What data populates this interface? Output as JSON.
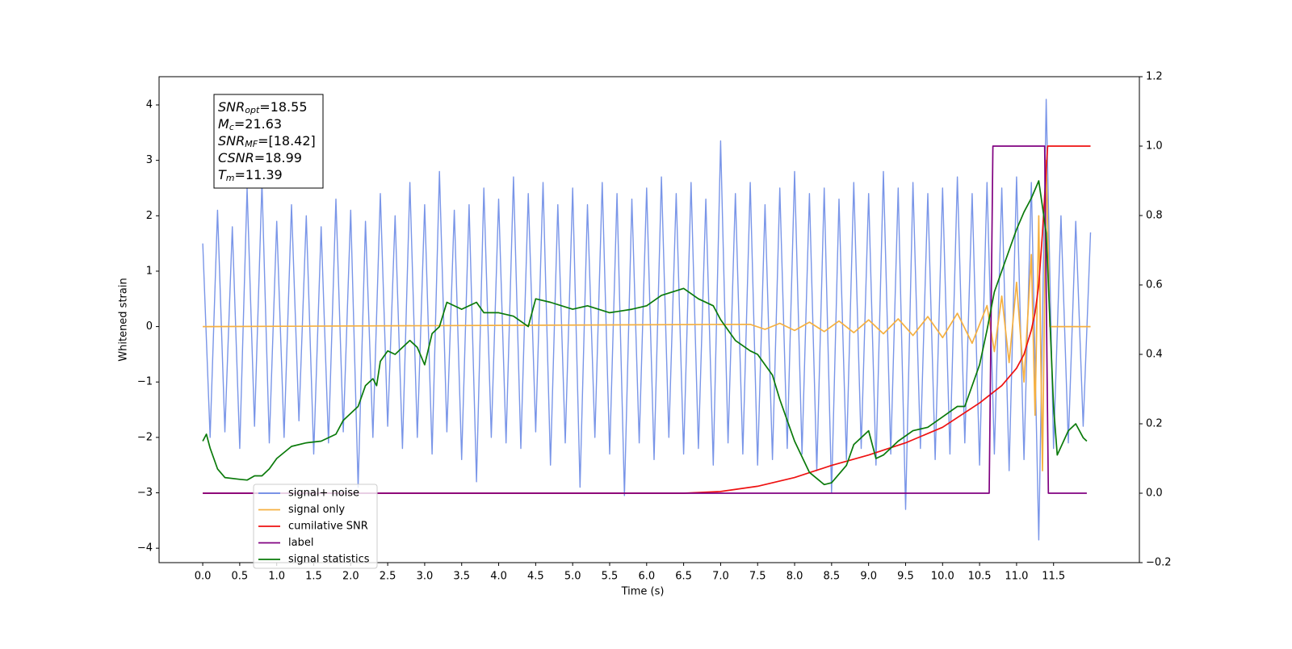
{
  "chart_data": {
    "type": "line",
    "xlabel": "Time (s)",
    "ylabel": "Whitened strain",
    "xlim": [
      -0.59,
      12.66
    ],
    "ylim": [
      -4.26,
      4.51
    ],
    "y2lim": [
      -0.2,
      1.2
    ],
    "xticks": [
      {
        "value": 0,
        "label": "0.0"
      },
      0.5,
      {
        "value": 1,
        "label": "1.0"
      },
      1.5,
      {
        "value": 2,
        "label": "2.0"
      },
      2.5,
      {
        "value": 3,
        "label": "3.0"
      },
      3.5,
      {
        "value": 4,
        "label": "4.0"
      },
      4.5,
      {
        "value": 5,
        "label": "5.0"
      },
      5.5,
      {
        "value": 6,
        "label": "6.0"
      },
      6.5,
      {
        "value": 7,
        "label": "7.0"
      },
      7.5,
      {
        "value": 8,
        "label": "8.0"
      },
      8.5,
      {
        "value": 9,
        "label": "9.0"
      },
      9.5,
      {
        "value": 10,
        "label": "10.0"
      },
      10.5,
      {
        "value": 11,
        "label": "11.0"
      },
      11.5
    ],
    "yticks": [
      {
        "value": -4,
        "label": "−4"
      },
      {
        "value": -3,
        "label": "−3"
      },
      {
        "value": -2,
        "label": "−2"
      },
      {
        "value": -1,
        "label": "−1"
      },
      0,
      1,
      2,
      3,
      4
    ],
    "y2ticks": [
      {
        "value": -0.2,
        "label": "−0.2"
      },
      {
        "value": 0,
        "label": "0.0"
      },
      0.2,
      0.4,
      0.6,
      0.8,
      {
        "value": 1,
        "label": "1.0"
      },
      1.2
    ],
    "annotation": [
      {
        "base": "SNR",
        "sub": "opt",
        "rest": "=18.55"
      },
      {
        "base": "M",
        "sub": "c",
        "rest": "=21.63"
      },
      {
        "base": "SNR",
        "sub": "MF",
        "rest": "=[18.42]"
      },
      {
        "base": "CSNR",
        "sub": null,
        "rest": "=18.99"
      },
      {
        "base": "T",
        "sub": "m",
        "rest": "=11.39"
      }
    ],
    "series": [
      {
        "name": "signal+ noise",
        "color": "#6a8ae6",
        "axis": "y",
        "x": [
          0,
          0.1,
          0.2,
          0.3,
          0.4,
          0.5,
          0.6,
          0.7,
          0.8,
          0.9,
          1,
          1.1,
          1.2,
          1.3,
          1.4,
          1.5,
          1.6,
          1.7,
          1.8,
          1.9,
          2,
          2.1,
          2.2,
          2.3,
          2.4,
          2.5,
          2.6,
          2.7,
          2.8,
          2.9,
          3,
          3.1,
          3.2,
          3.3,
          3.4,
          3.5,
          3.6,
          3.7,
          3.8,
          3.9,
          4,
          4.1,
          4.2,
          4.3,
          4.4,
          4.5,
          4.6,
          4.7,
          4.8,
          4.9,
          5,
          5.1,
          5.2,
          5.3,
          5.4,
          5.5,
          5.6,
          5.7,
          5.8,
          5.9,
          6,
          6.1,
          6.2,
          6.3,
          6.4,
          6.5,
          6.6,
          6.7,
          6.8,
          6.9,
          7,
          7.1,
          7.2,
          7.3,
          7.4,
          7.5,
          7.6,
          7.7,
          7.8,
          7.9,
          8,
          8.1,
          8.2,
          8.3,
          8.4,
          8.5,
          8.6,
          8.7,
          8.8,
          8.9,
          9,
          9.1,
          9.2,
          9.3,
          9.4,
          9.5,
          9.6,
          9.7,
          9.8,
          9.9,
          10,
          10.1,
          10.2,
          10.3,
          10.4,
          10.5,
          10.6,
          10.7,
          10.8,
          10.9,
          11,
          11.1,
          11.2,
          11.3,
          11.4,
          11.5,
          11.6,
          11.7,
          11.8,
          11.9,
          12
        ],
        "values": [
          1.5,
          -2.0,
          2.1,
          -1.9,
          1.8,
          -2.2,
          2.5,
          -1.8,
          2.6,
          -2.1,
          1.9,
          -2.0,
          2.2,
          -1.7,
          2.0,
          -2.3,
          1.8,
          -2.1,
          2.3,
          -1.9,
          2.1,
          -2.9,
          1.9,
          -2.0,
          2.4,
          -1.8,
          2.0,
          -2.2,
          2.6,
          -2.0,
          2.2,
          -2.3,
          2.8,
          -1.9,
          2.1,
          -2.4,
          2.2,
          -2.8,
          2.5,
          -2.0,
          2.3,
          -2.1,
          2.7,
          -2.2,
          2.4,
          -1.9,
          2.6,
          -2.5,
          2.2,
          -2.1,
          2.5,
          -2.9,
          2.2,
          -2.0,
          2.6,
          -2.3,
          2.4,
          -3.05,
          2.3,
          -2.1,
          2.5,
          -2.4,
          2.7,
          -2.0,
          2.4,
          -2.3,
          2.6,
          -2.2,
          2.3,
          -2.5,
          3.35,
          -2.1,
          2.4,
          -2.3,
          2.6,
          -2.5,
          2.2,
          -2.4,
          2.5,
          -2.2,
          2.8,
          -2.3,
          2.4,
          -2.6,
          2.5,
          -3.0,
          2.3,
          -2.4,
          2.6,
          -2.2,
          2.4,
          -2.5,
          2.8,
          -2.3,
          2.5,
          -3.3,
          2.6,
          -2.2,
          2.4,
          -2.4,
          2.5,
          -2.3,
          2.7,
          -2.1,
          2.4,
          -2.5,
          2.6,
          -2.3,
          2.5,
          -2.6,
          2.7,
          -2.4,
          2.6,
          -3.85,
          4.1,
          -2.2,
          2.0,
          -2.1,
          1.9,
          -1.8,
          1.7
        ]
      },
      {
        "name": "signal only",
        "color": "#f5b041",
        "axis": "y",
        "x": [
          0,
          7.4,
          7.6,
          7.8,
          8,
          8.2,
          8.4,
          8.6,
          8.8,
          9,
          9.2,
          9.4,
          9.6,
          9.8,
          10,
          10.2,
          10.4,
          10.6,
          10.7,
          10.8,
          10.9,
          11,
          11.1,
          11.2,
          11.25,
          11.3,
          11.35,
          11.4,
          11.45,
          12
        ],
        "values": [
          0,
          0.04,
          -0.05,
          0.06,
          -0.07,
          0.08,
          -0.09,
          0.1,
          -0.11,
          0.12,
          -0.13,
          0.14,
          -0.16,
          0.18,
          -0.2,
          0.24,
          -0.3,
          0.38,
          -0.45,
          0.55,
          -0.65,
          0.8,
          -1.0,
          1.3,
          -1.6,
          2.0,
          -2.6,
          3.0,
          0,
          0
        ]
      },
      {
        "name": "cumilative SNR",
        "color": "#ee1111",
        "axis": "y2",
        "x": [
          0,
          6.5,
          7,
          7.5,
          8,
          8.5,
          9,
          9.5,
          10,
          10.5,
          10.8,
          11,
          11.1,
          11.2,
          11.25,
          11.3,
          11.35,
          11.4,
          11.42,
          12
        ],
        "values": [
          0,
          0,
          0.005,
          0.02,
          0.045,
          0.08,
          0.11,
          0.145,
          0.19,
          0.26,
          0.31,
          0.36,
          0.4,
          0.47,
          0.52,
          0.6,
          0.75,
          0.93,
          1.0,
          1.0
        ]
      },
      {
        "name": "label",
        "color": "#800080",
        "axis": "y2",
        "x": [
          0,
          10.63,
          10.68,
          11.38,
          11.43,
          11.95
        ],
        "values": [
          0,
          0,
          1,
          1,
          0,
          0
        ]
      },
      {
        "name": "signal statistics",
        "color": "#0a7a0a",
        "axis": "y2",
        "x": [
          0,
          0.05,
          0.1,
          0.2,
          0.3,
          0.5,
          0.6,
          0.7,
          0.8,
          0.9,
          1,
          1.2,
          1.4,
          1.6,
          1.8,
          1.9,
          2,
          2.1,
          2.2,
          2.3,
          2.35,
          2.4,
          2.5,
          2.6,
          2.7,
          2.8,
          2.9,
          3,
          3.1,
          3.2,
          3.3,
          3.5,
          3.7,
          3.8,
          4,
          4.2,
          4.4,
          4.5,
          4.7,
          5,
          5.2,
          5.5,
          5.8,
          6,
          6.2,
          6.5,
          6.7,
          6.9,
          7,
          7.2,
          7.4,
          7.5,
          7.7,
          7.8,
          8,
          8.2,
          8.4,
          8.5,
          8.7,
          8.8,
          9,
          9.1,
          9.2,
          9.4,
          9.6,
          9.8,
          10,
          10.2,
          10.3,
          10.5,
          10.6,
          10.7,
          10.9,
          11,
          11.1,
          11.2,
          11.3,
          11.4,
          11.5,
          11.55,
          11.7,
          11.8,
          11.9,
          11.95
        ],
        "values": [
          0.15,
          0.17,
          0.13,
          0.07,
          0.045,
          0.04,
          0.038,
          0.05,
          0.05,
          0.07,
          0.1,
          0.135,
          0.145,
          0.15,
          0.17,
          0.21,
          0.23,
          0.25,
          0.31,
          0.33,
          0.31,
          0.38,
          0.41,
          0.4,
          0.42,
          0.44,
          0.42,
          0.37,
          0.46,
          0.48,
          0.55,
          0.53,
          0.55,
          0.52,
          0.52,
          0.51,
          0.48,
          0.56,
          0.55,
          0.53,
          0.54,
          0.52,
          0.53,
          0.54,
          0.57,
          0.59,
          0.56,
          0.54,
          0.5,
          0.44,
          0.41,
          0.4,
          0.34,
          0.27,
          0.15,
          0.06,
          0.025,
          0.03,
          0.08,
          0.14,
          0.18,
          0.1,
          0.11,
          0.15,
          0.18,
          0.19,
          0.22,
          0.25,
          0.25,
          0.37,
          0.47,
          0.58,
          0.7,
          0.76,
          0.81,
          0.85,
          0.9,
          0.75,
          0.25,
          0.11,
          0.18,
          0.2,
          0.16,
          0.15
        ]
      }
    ]
  }
}
